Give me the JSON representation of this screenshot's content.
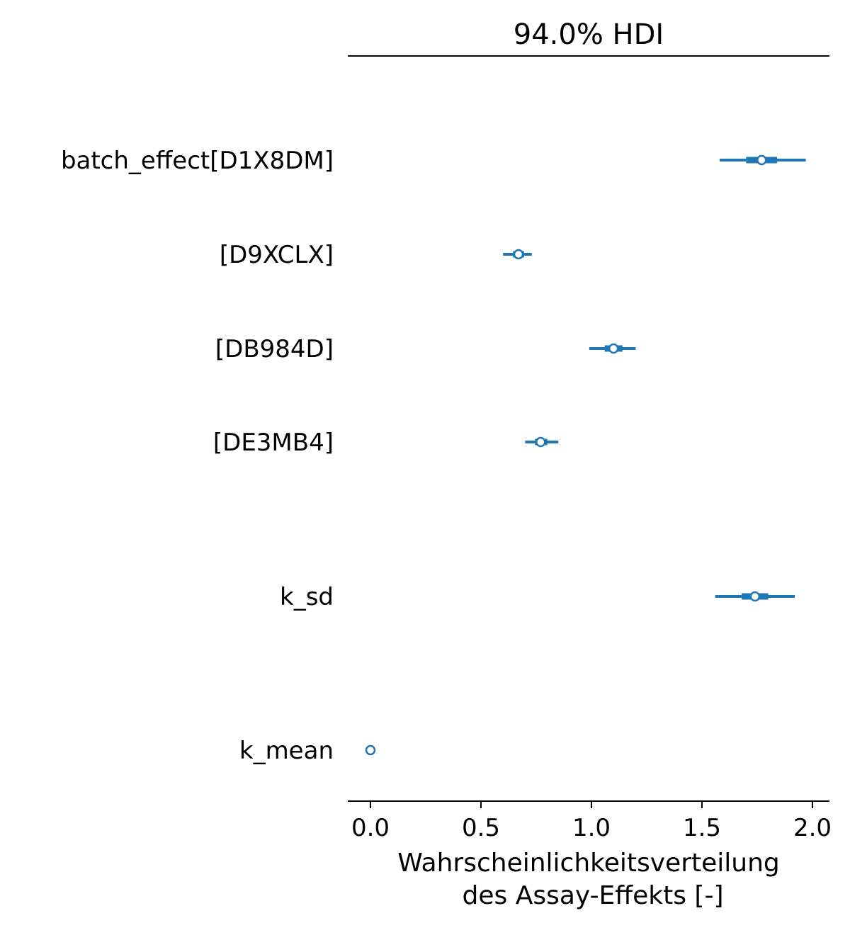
{
  "chart_data": {
    "type": "forest",
    "title": "94.0% HDI",
    "xlabel_lines": [
      "Wahrscheinlichkeitsverteilung",
      "des Assay-Effekts [-]"
    ],
    "xlim": [
      -0.1,
      2.08
    ],
    "xticks": [
      0.0,
      0.5,
      1.0,
      1.5,
      2.0
    ],
    "xtick_labels": [
      "0.0",
      "0.5",
      "1.0",
      "1.5",
      "2.0"
    ],
    "grid": false,
    "color": "#1f77b4",
    "rows": [
      {
        "label": "batch_effect[D1X8DM]",
        "mean": 1.77,
        "hdi94": [
          1.58,
          1.97
        ],
        "iqr": [
          1.7,
          1.84
        ]
      },
      {
        "label": "[D9XCLX]",
        "mean": 0.67,
        "hdi94": [
          0.6,
          0.73
        ],
        "iqr": [
          0.645,
          0.695
        ]
      },
      {
        "label": "[DB984D]",
        "mean": 1.1,
        "hdi94": [
          0.99,
          1.2
        ],
        "iqr": [
          1.06,
          1.14
        ]
      },
      {
        "label": "[DE3MB4]",
        "mean": 0.77,
        "hdi94": [
          0.7,
          0.85
        ],
        "iqr": [
          0.745,
          0.8
        ]
      },
      {
        "label": "k_sd",
        "mean": 1.74,
        "hdi94": [
          1.56,
          1.92
        ],
        "iqr": [
          1.68,
          1.8
        ]
      },
      {
        "label": "k_mean",
        "mean": 0.0,
        "hdi94": [
          0.0,
          0.0
        ],
        "iqr": [
          0.0,
          0.0
        ]
      }
    ]
  }
}
